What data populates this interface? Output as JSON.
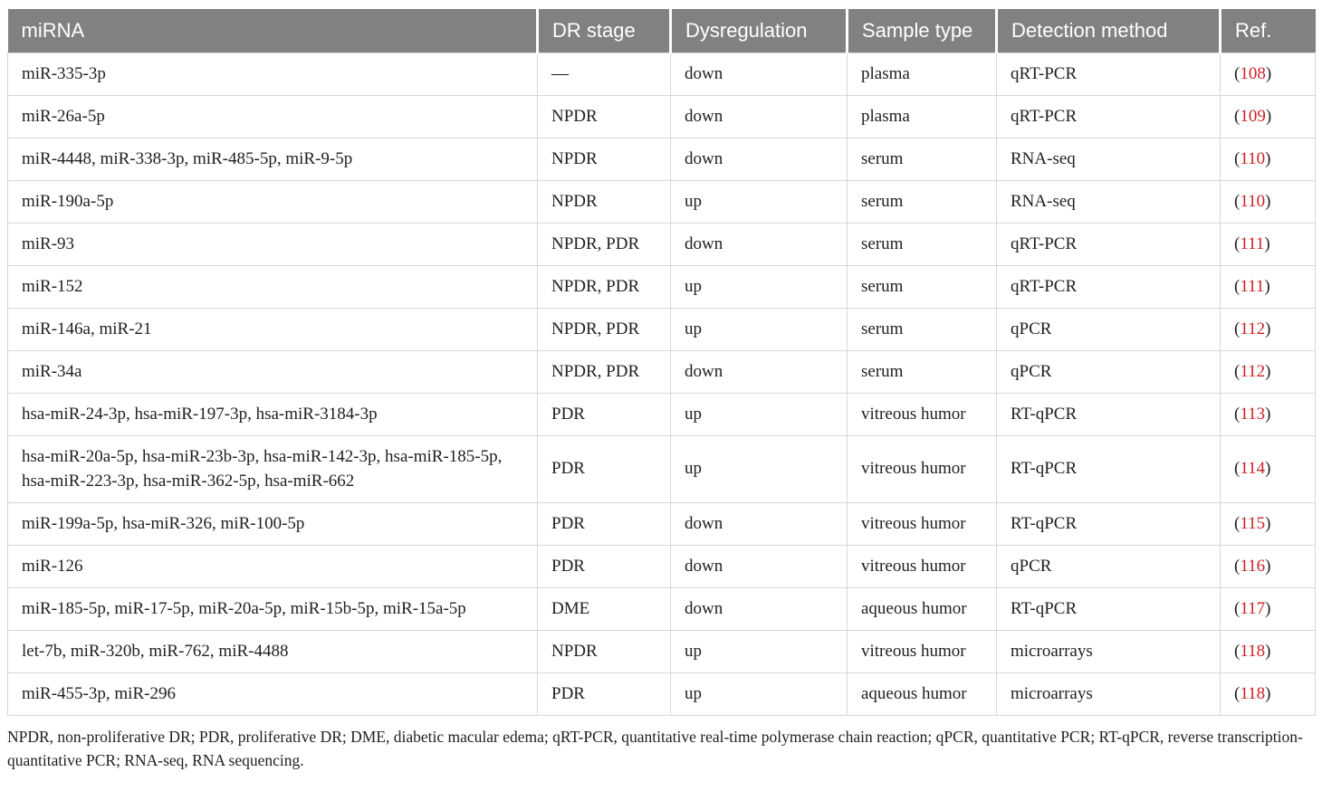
{
  "table": {
    "columns": [
      {
        "id": "mirna",
        "label": "miRNA"
      },
      {
        "id": "dr_stage",
        "label": "DR stage"
      },
      {
        "id": "dysregulation",
        "label": "Dysregulation"
      },
      {
        "id": "sample_type",
        "label": "Sample type"
      },
      {
        "id": "detection_method",
        "label": "Detection method"
      },
      {
        "id": "ref",
        "label": "Ref."
      }
    ],
    "rows": [
      {
        "mirna": "miR-335-3p",
        "dr_stage": "—",
        "dysregulation": "down",
        "sample_type": "plasma",
        "detection_method": "qRT-PCR",
        "ref": "108"
      },
      {
        "mirna": "miR-26a-5p",
        "dr_stage": "NPDR",
        "dysregulation": "down",
        "sample_type": "plasma",
        "detection_method": "qRT-PCR",
        "ref": "109"
      },
      {
        "mirna": "miR-4448, miR-338-3p, miR-485-5p, miR-9-5p",
        "dr_stage": "NPDR",
        "dysregulation": "down",
        "sample_type": "serum",
        "detection_method": "RNA-seq",
        "ref": "110"
      },
      {
        "mirna": "miR-190a-5p",
        "dr_stage": "NPDR",
        "dysregulation": "up",
        "sample_type": "serum",
        "detection_method": "RNA-seq",
        "ref": "110"
      },
      {
        "mirna": "miR-93",
        "dr_stage": "NPDR, PDR",
        "dysregulation": "down",
        "sample_type": "serum",
        "detection_method": "qRT-PCR",
        "ref": "111"
      },
      {
        "mirna": "miR-152",
        "dr_stage": "NPDR, PDR",
        "dysregulation": "up",
        "sample_type": "serum",
        "detection_method": "qRT-PCR",
        "ref": "111"
      },
      {
        "mirna": "miR-146a, miR-21",
        "dr_stage": "NPDR, PDR",
        "dysregulation": "up",
        "sample_type": "serum",
        "detection_method": "qPCR",
        "ref": "112"
      },
      {
        "mirna": "miR-34a",
        "dr_stage": "NPDR, PDR",
        "dysregulation": "down",
        "sample_type": "serum",
        "detection_method": "qPCR",
        "ref": "112"
      },
      {
        "mirna": "hsa-miR-24-3p, hsa-miR-197-3p, hsa-miR-3184-3p",
        "dr_stage": "PDR",
        "dysregulation": "up",
        "sample_type": "vitreous humor",
        "detection_method": "RT-qPCR",
        "ref": "113"
      },
      {
        "mirna": "hsa-miR-20a-5p, hsa-miR-23b-3p, hsa-miR-142-3p, hsa-miR-185-5p, hsa-miR-223-3p, hsa-miR-362-5p, hsa-miR-662",
        "dr_stage": "PDR",
        "dysregulation": "up",
        "sample_type": "vitreous humor",
        "detection_method": "RT-qPCR",
        "ref": "114"
      },
      {
        "mirna": "miR-199a-5p, hsa-miR-326, miR-100-5p",
        "dr_stage": "PDR",
        "dysregulation": "down",
        "sample_type": "vitreous humor",
        "detection_method": "RT-qPCR",
        "ref": "115"
      },
      {
        "mirna": "miR-126",
        "dr_stage": "PDR",
        "dysregulation": "down",
        "sample_type": "vitreous humor",
        "detection_method": "qPCR",
        "ref": "116"
      },
      {
        "mirna": "miR-185-5p, miR-17-5p, miR-20a-5p, miR-15b-5p, miR-15a-5p",
        "dr_stage": "DME",
        "dysregulation": "down",
        "sample_type": "aqueous humor",
        "detection_method": "RT-qPCR",
        "ref": "117"
      },
      {
        "mirna": "let-7b, miR-320b, miR-762, miR-4488",
        "dr_stage": "NPDR",
        "dysregulation": "up",
        "sample_type": "vitreous humor",
        "detection_method": "microarrays",
        "ref": "118"
      },
      {
        "mirna": "miR-455-3p, miR-296",
        "dr_stage": "PDR",
        "dysregulation": "up",
        "sample_type": "aqueous humor",
        "detection_method": "microarrays",
        "ref": "118"
      }
    ]
  },
  "footnote": "NPDR, non-proliferative DR; PDR, proliferative DR; DME, diabetic macular edema; qRT-PCR, quantitative real-time polymerase chain reaction; qPCR, quantitative PCR; RT-qPCR, reverse transcription-quantitative PCR; RNA-seq, RNA sequencing.",
  "colors": {
    "header_bg": "#818181",
    "header_text": "#ffffff",
    "body_text": "#1f1f1f",
    "row_border": "#d8d8d8",
    "ref_red": "#cb2127"
  }
}
